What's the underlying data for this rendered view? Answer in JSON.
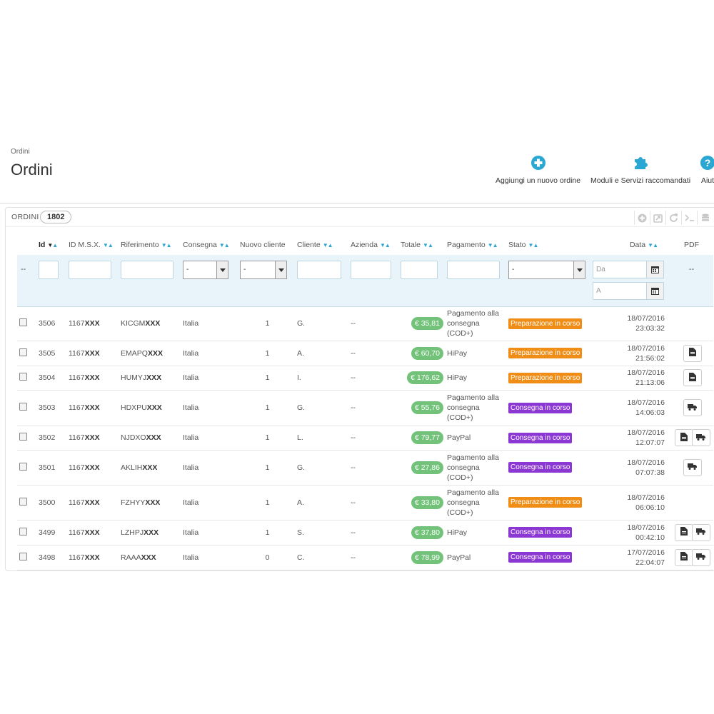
{
  "header": {
    "breadcrumb": "Ordini",
    "title": "Ordini",
    "actions": [
      {
        "label": "Aggiungi un nuovo ordine",
        "icon": "plus-circle-icon"
      },
      {
        "label": "Moduli e Servizi raccomandati",
        "icon": "puzzle-icon"
      },
      {
        "label": "Aiut",
        "icon": "help-icon"
      }
    ]
  },
  "panel": {
    "title": "ORDINI",
    "count": "1802",
    "tools": [
      "add-icon",
      "export-icon",
      "refresh-icon",
      "sql-icon",
      "database-icon"
    ]
  },
  "columns": {
    "id": "Id",
    "msx": "ID M.S.X.",
    "ref": "Riferimento",
    "delivery": "Consegna",
    "newcustomer": "Nuovo cliente",
    "customer": "Cliente",
    "company": "Azienda",
    "total": "Totale",
    "payment": "Pagamento",
    "status": "Stato",
    "date": "Data",
    "pdf": "PDF"
  },
  "filters": {
    "dash": "--",
    "select_default": "-",
    "date_from": "Da",
    "date_to": "A",
    "pdf_dash": "--"
  },
  "colors": {
    "total_badge": "#72c279",
    "status_preparazione": "#f08d16",
    "status_consegna": "#8b37d3",
    "accent": "#2aa7d3"
  },
  "rows": [
    {
      "id": "3506",
      "msx": "1167",
      "msx_hidden": "XXX",
      "ref": "KICGM",
      "ref_hidden": "XXX",
      "delivery": "Italia",
      "newc": "1",
      "customer": "G.",
      "company": "--",
      "total": "€ 35,81",
      "payment": "Pagamento alla consegna (COD+)",
      "status": "Preparazione in corso",
      "status_type": "prep",
      "date": "18/07/2016",
      "time": "23:03:32",
      "pdf": []
    },
    {
      "id": "3505",
      "msx": "1167",
      "msx_hidden": "XXX",
      "ref": "EMAPQ",
      "ref_hidden": "XXX",
      "delivery": "Italia",
      "newc": "1",
      "customer": "A.",
      "company": "--",
      "total": "€ 60,70",
      "payment": "HiPay",
      "status": "Preparazione in corso",
      "status_type": "prep",
      "date": "18/07/2016",
      "time": "21:56:02",
      "pdf": [
        "invoice"
      ]
    },
    {
      "id": "3504",
      "msx": "1167",
      "msx_hidden": "XXX",
      "ref": "HUMYJ",
      "ref_hidden": "XXX",
      "delivery": "Italia",
      "newc": "1",
      "customer": "I.",
      "company": "--",
      "total": "€ 176,62",
      "payment": "HiPay",
      "status": "Preparazione in corso",
      "status_type": "prep",
      "date": "18/07/2016",
      "time": "21:13:06",
      "pdf": [
        "invoice"
      ]
    },
    {
      "id": "3503",
      "msx": "1167",
      "msx_hidden": "XXX",
      "ref": "HDXPU",
      "ref_hidden": "XXX",
      "delivery": "Italia",
      "newc": "1",
      "customer": "G.",
      "company": "--",
      "total": "€ 55,76",
      "payment": "Pagamento alla consegna (COD+)",
      "status": "Consegna in corso",
      "status_type": "cons",
      "date": "18/07/2016",
      "time": "14:06:03",
      "pdf": [
        "delivery"
      ]
    },
    {
      "id": "3502",
      "msx": "1167",
      "msx_hidden": "XXX",
      "ref": "NJDXO",
      "ref_hidden": "XXX",
      "delivery": "Italia",
      "newc": "1",
      "customer": "L.",
      "company": "--",
      "total": "€ 79,77",
      "payment": "PayPal",
      "status": "Consegna in corso",
      "status_type": "cons",
      "date": "18/07/2016",
      "time": "12:07:07",
      "pdf": [
        "invoice",
        "delivery"
      ]
    },
    {
      "id": "3501",
      "msx": "1167",
      "msx_hidden": "XXX",
      "ref": "AKLIH",
      "ref_hidden": "XXX",
      "delivery": "Italia",
      "newc": "1",
      "customer": "G.",
      "company": "--",
      "total": "€ 27,86",
      "payment": "Pagamento alla consegna (COD+)",
      "status": "Consegna in corso",
      "status_type": "cons",
      "date": "18/07/2016",
      "time": "07:07:38",
      "pdf": [
        "delivery"
      ]
    },
    {
      "id": "3500",
      "msx": "1167",
      "msx_hidden": "XXX",
      "ref": "FZHYY",
      "ref_hidden": "XXX",
      "delivery": "Italia",
      "newc": "1",
      "customer": "A.",
      "company": "--",
      "total": "€ 33,80",
      "payment": "Pagamento alla consegna (COD+)",
      "status": "Preparazione in corso",
      "status_type": "prep",
      "date": "18/07/2016",
      "time": "06:06:10",
      "pdf": []
    },
    {
      "id": "3499",
      "msx": "1167",
      "msx_hidden": "XXX",
      "ref": "LZHPJ",
      "ref_hidden": "XXX",
      "delivery": "Italia",
      "newc": "1",
      "customer": "S.",
      "company": "--",
      "total": "€ 37,80",
      "payment": "HiPay",
      "status": "Consegna in corso",
      "status_type": "cons",
      "date": "18/07/2016",
      "time": "00:42:10",
      "pdf": [
        "invoice",
        "delivery"
      ]
    },
    {
      "id": "3498",
      "msx": "1167",
      "msx_hidden": "XXX",
      "ref": "RAAA",
      "ref_hidden": "XXX",
      "delivery": "Italia",
      "newc": "0",
      "customer": "C.",
      "company": "--",
      "total": "€ 78,99",
      "payment": "PayPal",
      "status": "Consegna in corso",
      "status_type": "cons",
      "date": "17/07/2016",
      "time": "22:04:07",
      "pdf": [
        "invoice",
        "delivery"
      ]
    }
  ]
}
